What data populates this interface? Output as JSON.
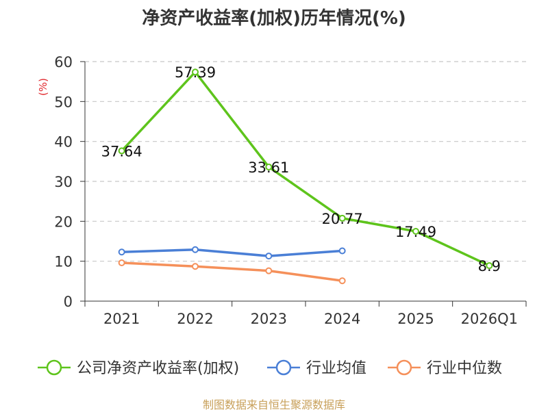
{
  "chart_data": {
    "type": "line",
    "title": "净资产收益率(加权)历年情况(%)",
    "ylabel": "(%)",
    "xlabel": "",
    "categories": [
      "2021",
      "2022",
      "2023",
      "2024",
      "2025",
      "2026Q1"
    ],
    "ylim": [
      0,
      60
    ],
    "yticks": [
      0,
      10,
      20,
      30,
      40,
      50,
      60
    ],
    "grid": true,
    "legend_position": "bottom",
    "series": [
      {
        "name": "公司净资产收益率(加权)",
        "color": "#5ec41c",
        "show_labels": true,
        "values": [
          37.64,
          57.39,
          33.61,
          20.77,
          17.49,
          8.9
        ],
        "labels": [
          "37.64",
          "57.39",
          "33.61",
          "20.77",
          "17.49",
          "8.9"
        ]
      },
      {
        "name": "行业均值",
        "color": "#4a7fd6",
        "show_labels": false,
        "values": [
          12.3,
          12.9,
          11.3,
          12.6,
          null,
          null
        ]
      },
      {
        "name": "行业中位数",
        "color": "#f5905a",
        "show_labels": false,
        "values": [
          9.6,
          8.7,
          7.6,
          5.1,
          null,
          null
        ]
      }
    ]
  },
  "source": "制图数据来自恒生聚源数据库"
}
